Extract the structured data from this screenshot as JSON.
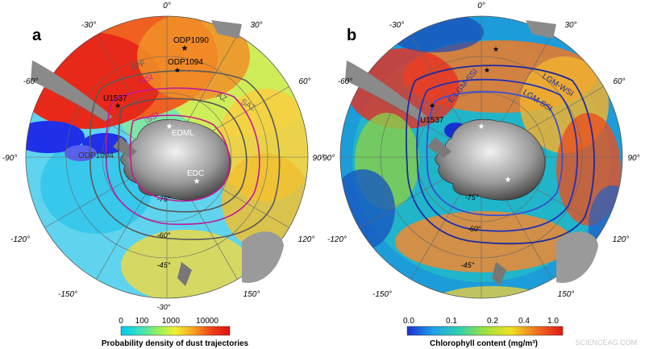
{
  "panels": [
    {
      "letter": "a",
      "lon_labels": [
        "0°",
        "30°",
        "60°",
        "90°",
        "120°",
        "150°",
        "-150°",
        "-120°",
        "-90°",
        "-60°",
        "-30°"
      ],
      "lat_labels": [
        "-30°",
        "-45°",
        "-60°",
        "-75°"
      ],
      "front_labels": [
        "APF",
        "WSI",
        "AZ",
        "SAZ",
        "SSI"
      ],
      "site_labels": [
        "ODP1090",
        "ODP1094",
        "U1537",
        "EDML",
        "EDC",
        "ODP1094"
      ],
      "colorbar": {
        "ticks": [
          "0",
          "100",
          "1000",
          "10000"
        ],
        "title": "Probability density of dust trajectories",
        "colors": [
          "#00c8f0",
          "#3ae0c0",
          "#90f060",
          "#f0f030",
          "#f8a020",
          "#f04018",
          "#e01010"
        ]
      },
      "colors": {
        "apf": "#5a5a5a",
        "wsi": "#c0189a",
        "az": "#555555",
        "ssi": "#c81a8c"
      }
    },
    {
      "letter": "b",
      "lon_labels": [
        "0°",
        "30°",
        "60°",
        "90°",
        "120°",
        "150°",
        "-150°",
        "-120°",
        "-90°",
        "-60°",
        "-30°"
      ],
      "lat_labels": [
        "-45°",
        "-60°",
        "-75°"
      ],
      "front_labels": [
        "LGM-WSI",
        "LGM-SSI",
        "E-LGM-SSI"
      ],
      "site_labels": [
        "U1537"
      ],
      "colorbar": {
        "ticks": [
          "0.0",
          "0.1",
          "0.2",
          "0.4",
          "1.0"
        ],
        "title": "Chlorophyll content (mg/m³)",
        "colors": [
          "#1830d0",
          "#20a0e8",
          "#30d0b0",
          "#a0e040",
          "#f0e020",
          "#f07020",
          "#e01818"
        ]
      },
      "colors": {
        "lgm_wsi": "#1c2aa0",
        "lgm_ssi": "#2030b8",
        "e_lgm_ssi": "#3a50d0"
      }
    }
  ],
  "watermark": "SCIENCEAG.COM"
}
